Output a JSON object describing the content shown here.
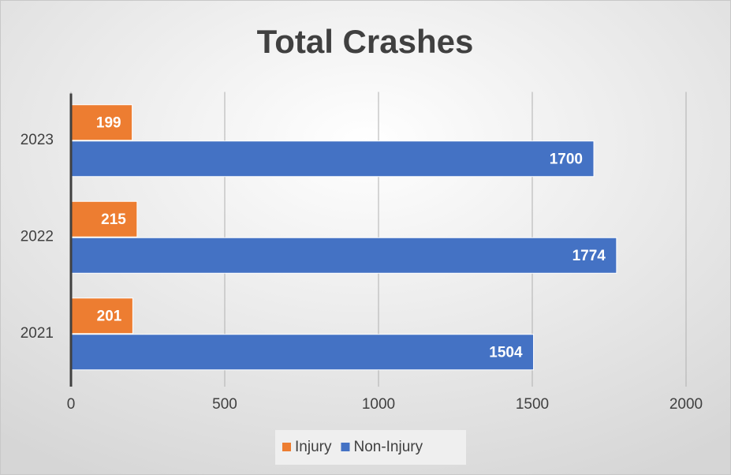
{
  "chart_data": {
    "type": "bar",
    "orientation": "horizontal",
    "title": "Total Crashes",
    "categories": [
      "2021",
      "2022",
      "2023"
    ],
    "series": [
      {
        "name": "Injury",
        "color": "#ed7d31",
        "values": [
          201,
          215,
          199
        ]
      },
      {
        "name": "Non-Injury",
        "color": "#4472c4",
        "values": [
          1504,
          1774,
          1700
        ]
      }
    ],
    "xlim": [
      0,
      2000
    ],
    "xticks": [
      0,
      500,
      1000,
      1500,
      2000
    ],
    "grid": true,
    "legend": "bottom"
  }
}
